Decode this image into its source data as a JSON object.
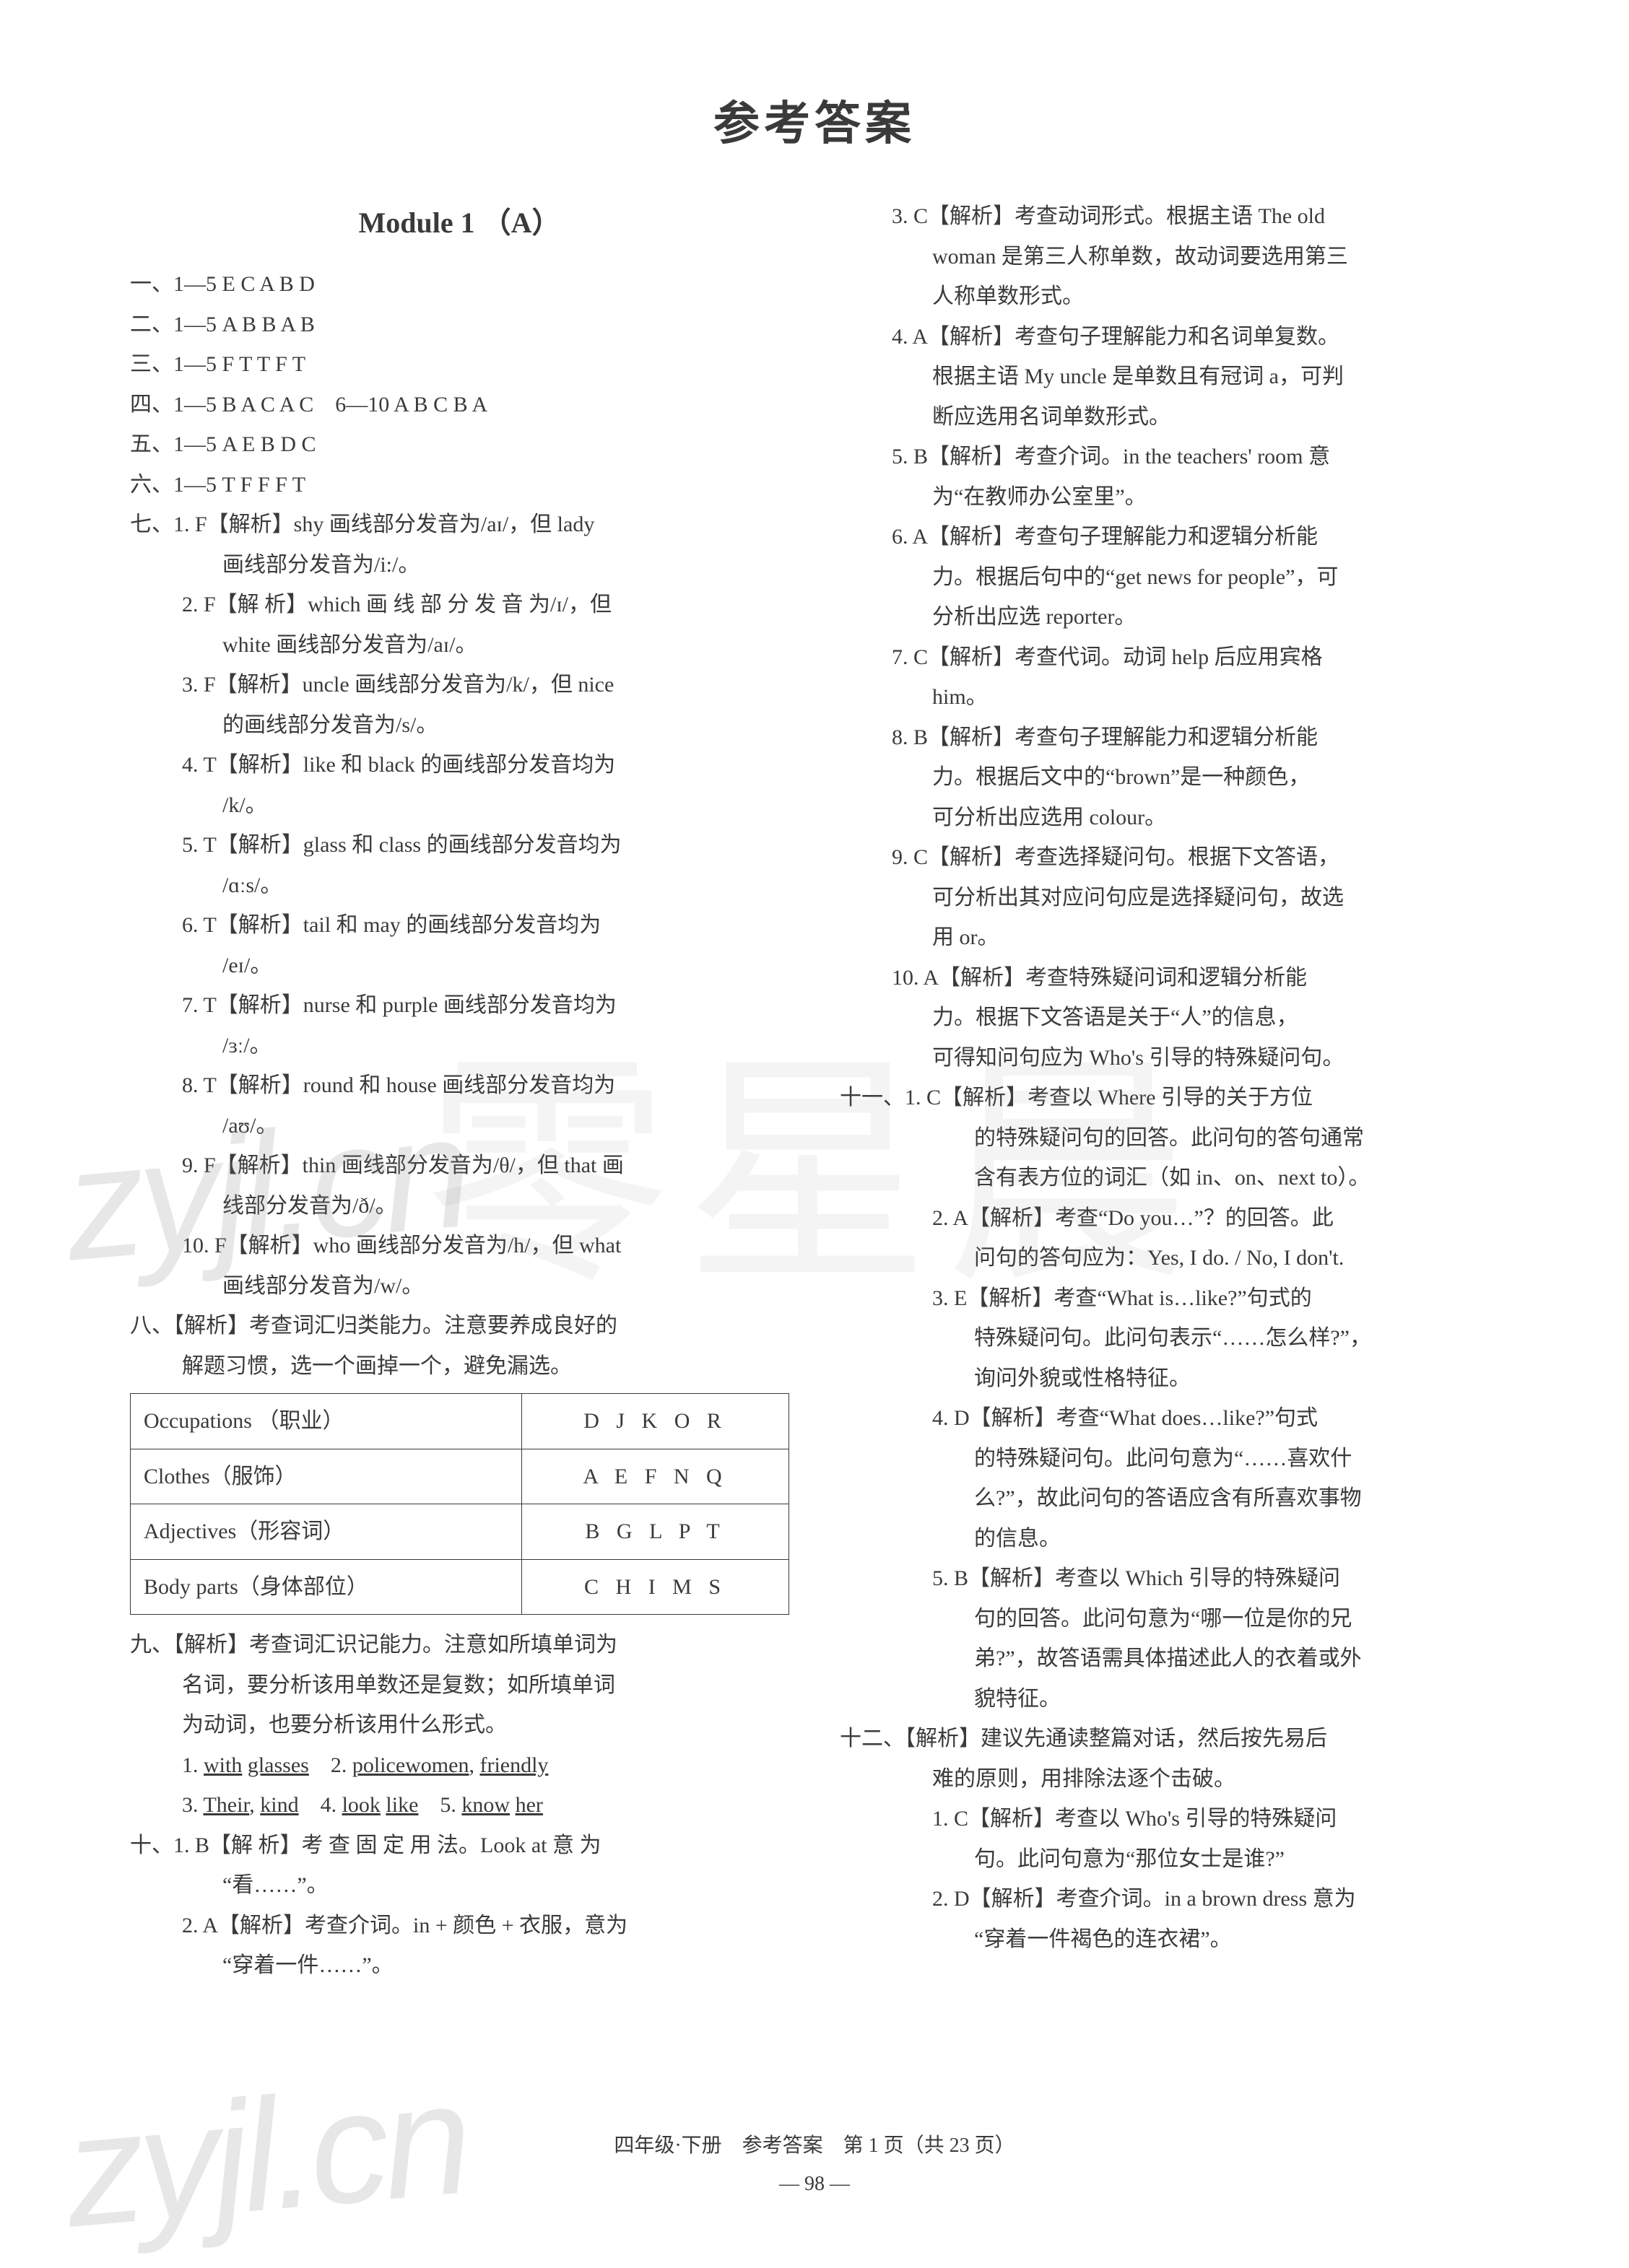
{
  "title": "参考答案",
  "module_heading": "Module 1 （A）",
  "watermark_text": "zyjl.cn",
  "center_watermark": "零星晨",
  "footer_line1": "四年级·下册　参考答案　第 1 页（共 23 页）",
  "footer_line2": "— 98 —",
  "table": {
    "rows": [
      [
        "Occupations （职业）",
        "D J K O R"
      ],
      [
        "Clothes（服饰）",
        "A E F N Q"
      ],
      [
        "Adjectives（形容词）",
        "B G L P T"
      ],
      [
        "Body parts（身体部位）",
        "C H I M S"
      ]
    ]
  },
  "left": [
    {
      "i": 0,
      "t": "一、1—5  E  C  A  B  D"
    },
    {
      "i": 0,
      "t": "二、1—5  A  B  B  A  B"
    },
    {
      "i": 0,
      "t": "三、1—5  F  T  T  F  T"
    },
    {
      "i": 0,
      "t": "四、1—5  B  A  C  A  C　6—10  A  B  C  B  A"
    },
    {
      "i": 0,
      "t": "五、1—5  A  E  B  D  C"
    },
    {
      "i": 0,
      "t": "六、1—5  T  F  F  F  T"
    },
    {
      "i": 0,
      "t": "七、1. F【解析】shy 画线部分发音为/aɪ/，但 lady"
    },
    {
      "i": 2,
      "t": "画线部分发音为/i:/。"
    },
    {
      "i": 1,
      "t": "2. F【解 析】which 画 线 部 分 发 音 为/ɪ/，但"
    },
    {
      "i": 2,
      "t": "white 画线部分发音为/aɪ/。"
    },
    {
      "i": 1,
      "t": "3. F【解析】uncle 画线部分发音为/k/，但 nice"
    },
    {
      "i": 2,
      "t": "的画线部分发音为/s/。"
    },
    {
      "i": 1,
      "t": "4. T【解析】like 和 black 的画线部分发音均为"
    },
    {
      "i": 2,
      "t": "/k/。"
    },
    {
      "i": 1,
      "t": "5. T【解析】glass 和 class 的画线部分发音均为"
    },
    {
      "i": 2,
      "t": "/ɑːs/。"
    },
    {
      "i": 1,
      "t": "6. T【解析】tail 和 may 的画线部分发音均为"
    },
    {
      "i": 2,
      "t": "/eɪ/。"
    },
    {
      "i": 1,
      "t": "7. T【解析】nurse 和 purple 画线部分发音均为"
    },
    {
      "i": 2,
      "t": "/ɜː/。"
    },
    {
      "i": 1,
      "t": "8. T【解析】round 和 house 画线部分发音均为"
    },
    {
      "i": 2,
      "t": "/aʊ/。"
    },
    {
      "i": 1,
      "t": "9. F【解析】thin 画线部分发音为/θ/，但 that 画"
    },
    {
      "i": 2,
      "t": "线部分发音为/ð/。"
    },
    {
      "i": 1,
      "t": "10. F【解析】who 画线部分发音为/h/，但 what"
    },
    {
      "i": 2,
      "t": "画线部分发音为/w/。"
    },
    {
      "i": 0,
      "t": "八、【解析】考查词汇归类能力。注意要养成良好的"
    },
    {
      "i": 1,
      "t": "解题习惯，选一个画掉一个，避免漏选。"
    },
    {
      "i": 0,
      "t": "__TABLE__"
    },
    {
      "i": 0,
      "t": "九、【解析】考查词汇识记能力。注意如所填单词为"
    },
    {
      "i": 1,
      "t": "名词，要分析该用单数还是复数；如所填单词"
    },
    {
      "i": 1,
      "t": "为动词，也要分析该用什么形式。"
    },
    {
      "i": 1,
      "html": "1. <span class='u'>with</span> <span class='u'>glasses</span>　2. <span class='u'>policewomen</span>, <span class='u'>friendly</span>"
    },
    {
      "i": 1,
      "html": "3. <span class='u'>Their</span>, <span class='u'>kind</span>　4. <span class='u'>look</span> <span class='u'>like</span>　5. <span class='u'>know</span> <span class='u'>her</span>"
    },
    {
      "i": 0,
      "t": "十、1. B【解 析】考 查 固 定 用 法。Look at 意 为"
    },
    {
      "i": 2,
      "t": "“看……”。"
    },
    {
      "i": 1,
      "t": "2. A【解析】考查介词。in + 颜色 + 衣服，意为"
    },
    {
      "i": 2,
      "t": "“穿着一件……”。"
    }
  ],
  "right": [
    {
      "i": 1,
      "t": "3. C【解析】考查动词形式。根据主语 The old"
    },
    {
      "i": 2,
      "t": "woman 是第三人称单数，故动词要选用第三"
    },
    {
      "i": 2,
      "t": "人称单数形式。"
    },
    {
      "i": 1,
      "t": "4. A【解析】考查句子理解能力和名词单复数。"
    },
    {
      "i": 2,
      "t": "根据主语 My uncle 是单数且有冠词 a，可判"
    },
    {
      "i": 2,
      "t": "断应选用名词单数形式。"
    },
    {
      "i": 1,
      "t": "5. B【解析】考查介词。in the teachers' room 意"
    },
    {
      "i": 2,
      "t": "为“在教师办公室里”。"
    },
    {
      "i": 1,
      "t": "6. A【解析】考查句子理解能力和逻辑分析能"
    },
    {
      "i": 2,
      "t": "力。根据后句中的“get news for people”，可"
    },
    {
      "i": 2,
      "t": "分析出应选 reporter。"
    },
    {
      "i": 1,
      "t": "7. C【解析】考查代词。动词 help 后应用宾格"
    },
    {
      "i": 2,
      "t": "him。"
    },
    {
      "i": 1,
      "t": "8. B【解析】考查句子理解能力和逻辑分析能"
    },
    {
      "i": 2,
      "t": "力。根据后文中的“brown”是一种颜色，"
    },
    {
      "i": 2,
      "t": "可分析出应选用 colour。"
    },
    {
      "i": 1,
      "t": "9. C【解析】考查选择疑问句。根据下文答语，"
    },
    {
      "i": 2,
      "t": "可分析出其对应问句应是选择疑问句，故选"
    },
    {
      "i": 2,
      "t": "用 or。"
    },
    {
      "i": 1,
      "t": "10. A【解析】考查特殊疑问词和逻辑分析能"
    },
    {
      "i": 2,
      "t": "力。根据下文答语是关于“人”的信息，"
    },
    {
      "i": 2,
      "t": "可得知问句应为 Who's 引导的特殊疑问句。"
    },
    {
      "i": 0,
      "t": "十一、1. C【解析】考查以 Where 引导的关于方位"
    },
    {
      "i": 3,
      "t": "的特殊疑问句的回答。此问句的答句通常"
    },
    {
      "i": 3,
      "t": "含有表方位的词汇（如 in、on、next to）。"
    },
    {
      "i": 2,
      "t": "2. A【解析】考查“Do you…”？的回答。此"
    },
    {
      "i": 3,
      "t": "问句的答句应为：Yes, I do. / No, I don't."
    },
    {
      "i": 2,
      "t": "3. E【解析】考查“What is…like?”句式的"
    },
    {
      "i": 3,
      "t": "特殊疑问句。此问句表示“……怎么样?”，"
    },
    {
      "i": 3,
      "t": "询问外貌或性格特征。"
    },
    {
      "i": 2,
      "t": "4. D【解析】考查“What does…like?”句式"
    },
    {
      "i": 3,
      "t": "的特殊疑问句。此问句意为“……喜欢什"
    },
    {
      "i": 3,
      "t": "么?”，故此问句的答语应含有所喜欢事物"
    },
    {
      "i": 3,
      "t": "的信息。"
    },
    {
      "i": 2,
      "t": "5. B【解析】考查以 Which 引导的特殊疑问"
    },
    {
      "i": 3,
      "t": "句的回答。此问句意为“哪一位是你的兄"
    },
    {
      "i": 3,
      "t": "弟?”，故答语需具体描述此人的衣着或外"
    },
    {
      "i": 3,
      "t": "貌特征。"
    },
    {
      "i": 0,
      "t": "十二、【解析】建议先通读整篇对话，然后按先易后"
    },
    {
      "i": 2,
      "t": "难的原则，用排除法逐个击破。"
    },
    {
      "i": 2,
      "t": "1. C【解析】考查以 Who's 引导的特殊疑问"
    },
    {
      "i": 3,
      "t": "句。此问句意为“那位女士是谁?”"
    },
    {
      "i": 2,
      "t": "2. D【解析】考查介词。in a brown dress 意为"
    },
    {
      "i": 3,
      "t": "“穿着一件褐色的连衣裙”。"
    }
  ]
}
